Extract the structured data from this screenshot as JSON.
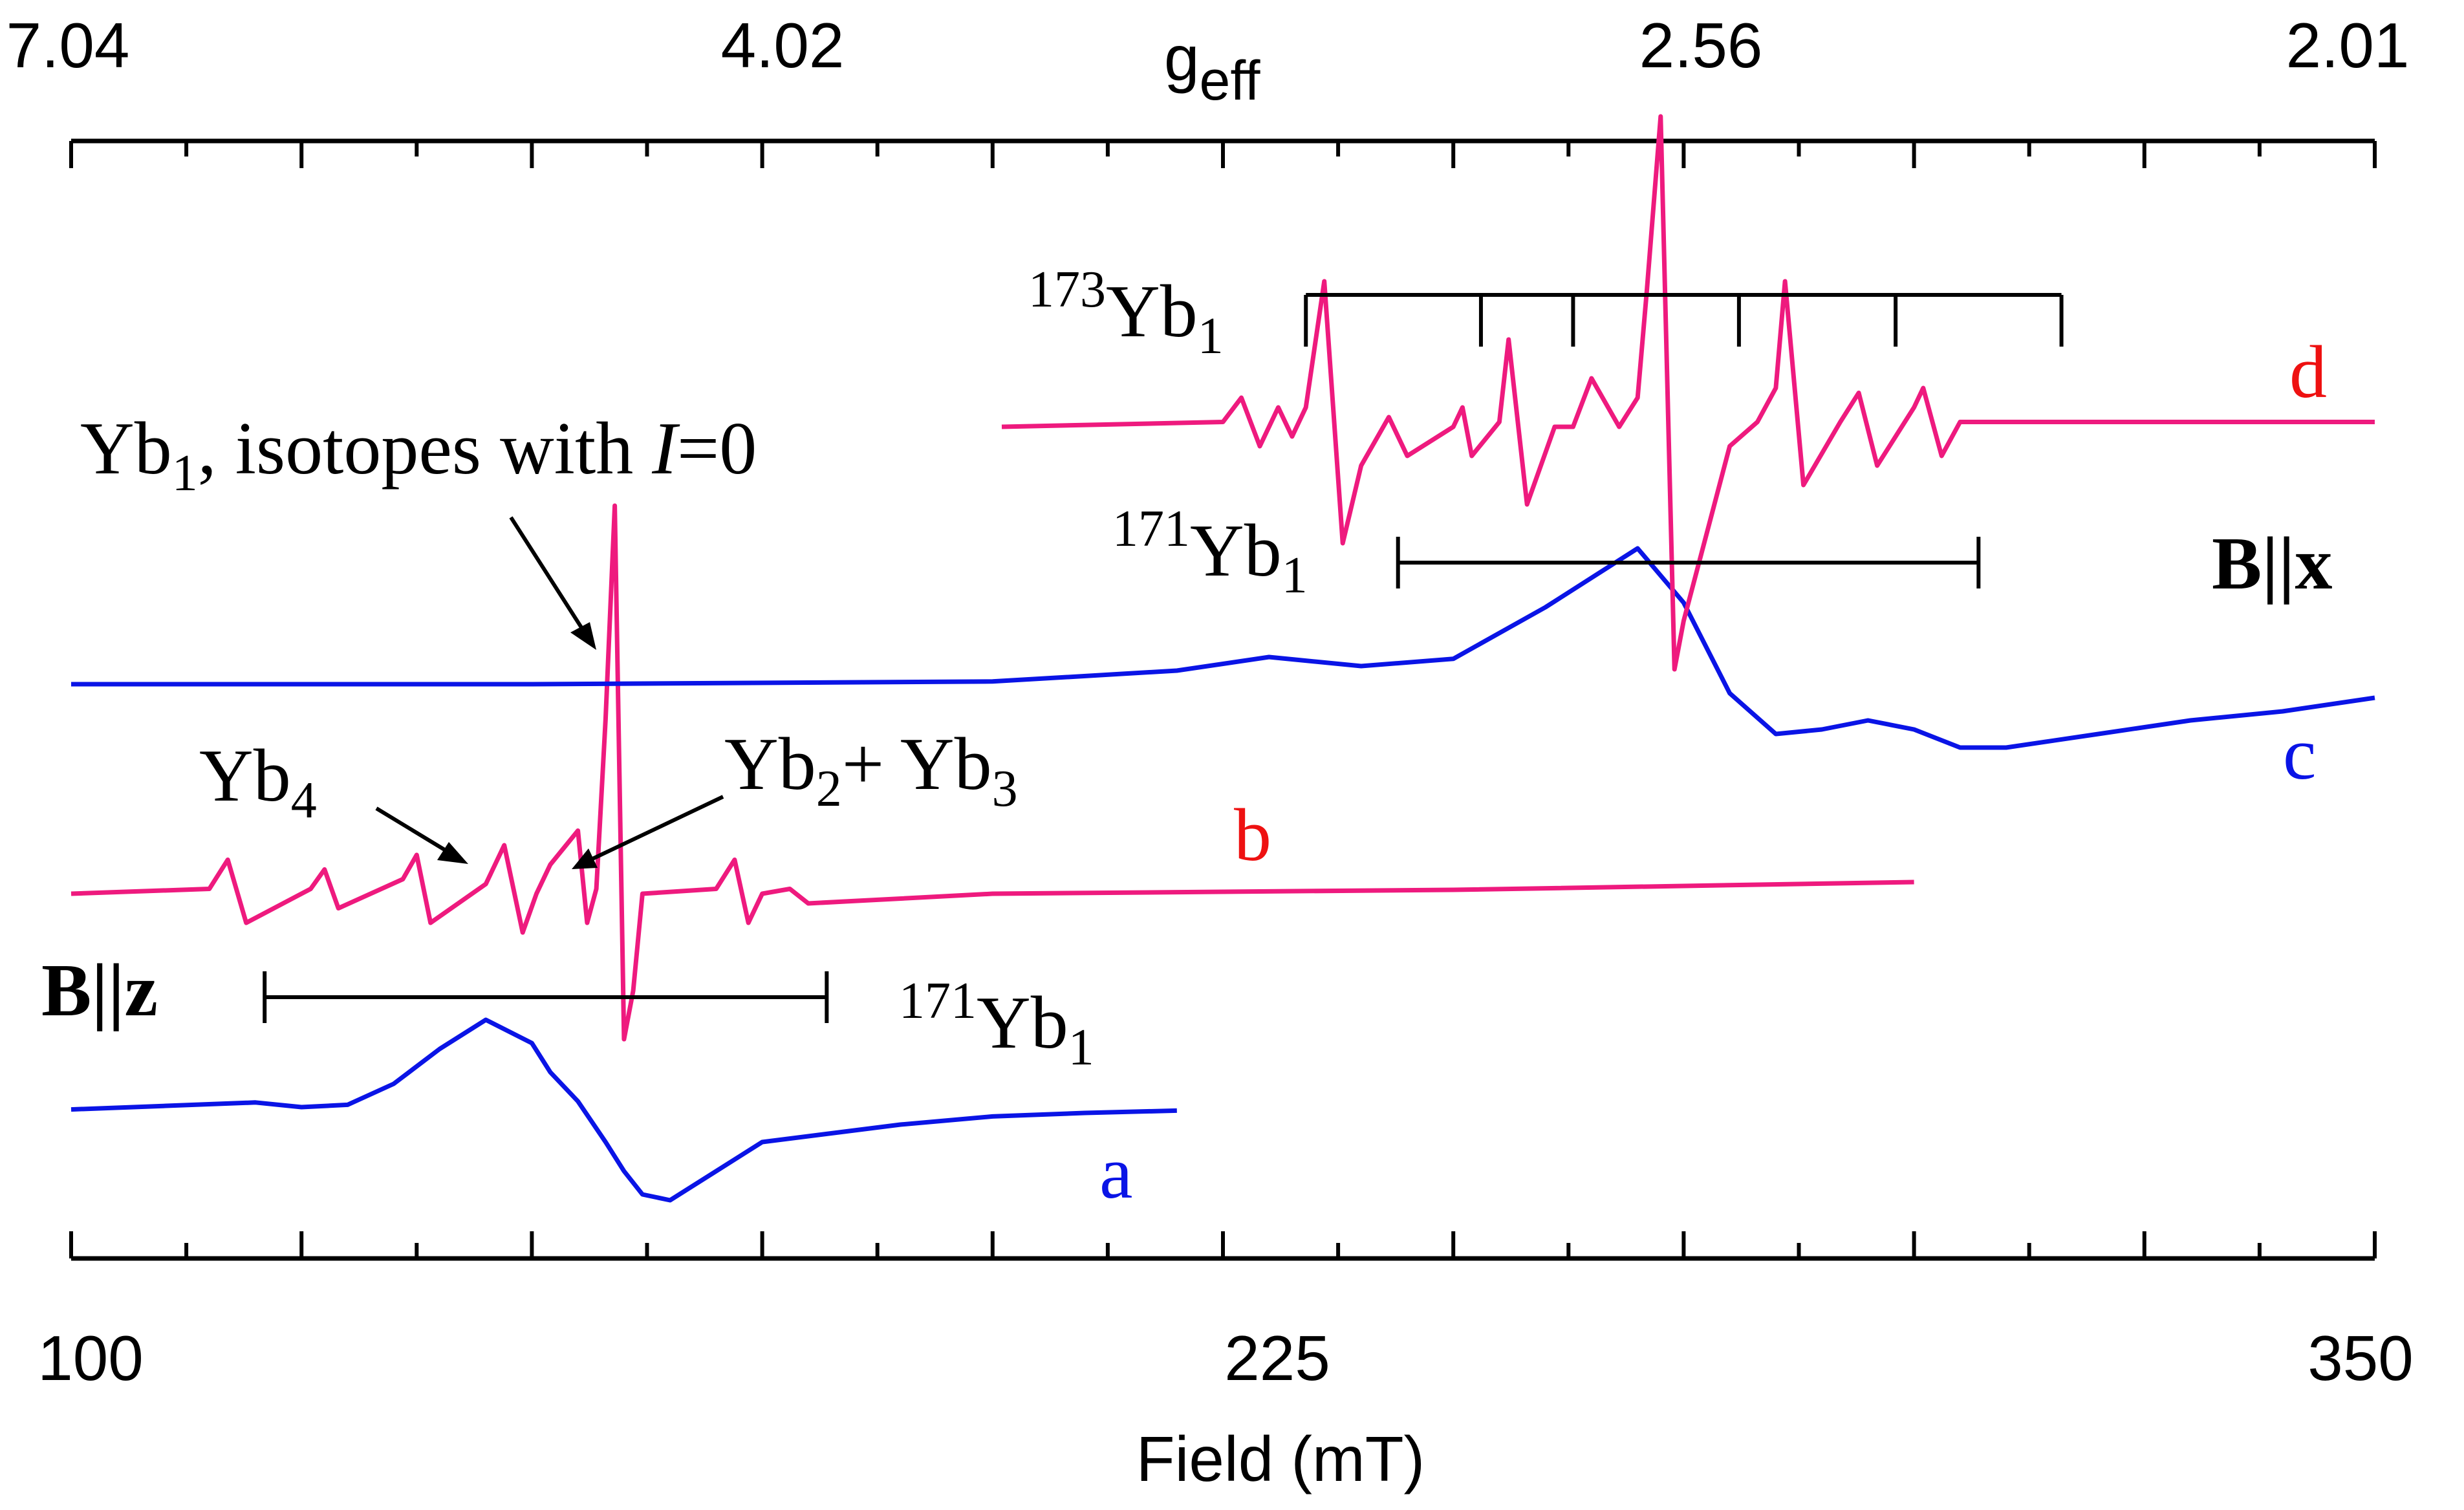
{
  "chart_data": {
    "type": "line",
    "title": "",
    "xlabel": "Field (mT)",
    "x2label": "g",
    "x2label_sub": "eff",
    "xlim": [
      100,
      350
    ],
    "xticks": [
      100,
      225,
      350
    ],
    "xtick_labels": [
      "100",
      "225",
      "350"
    ],
    "g_ticks": [
      7.04,
      4.02,
      2.56,
      2.01
    ],
    "g_tick_labels": [
      "7.04",
      "4.02",
      "2.56",
      "2.01"
    ],
    "y_units": "arbitrary (stacked, offset traces)",
    "colors": {
      "blue": "#0a14e6",
      "pink": "#ee1a7e",
      "red": "#ee1111",
      "black": "#000000"
    },
    "series": [
      {
        "name": "a",
        "label": "a",
        "color": "#0a14e6",
        "orientation": "B||z",
        "x": [
          100,
          110,
          120,
          125,
          130,
          135,
          140,
          145,
          150,
          152,
          155,
          158,
          160,
          162,
          165,
          170,
          175,
          180,
          190,
          200,
          210,
          220
        ],
        "y": [
          -0.02,
          0.01,
          0.04,
          0.0,
          0.02,
          0.2,
          0.5,
          0.75,
          0.55,
          0.3,
          0.05,
          -0.3,
          -0.55,
          -0.75,
          -0.8,
          -0.55,
          -0.3,
          -0.25,
          -0.15,
          -0.08,
          -0.05,
          -0.03
        ]
      },
      {
        "name": "b",
        "label": "b",
        "color": "#ee1a7e",
        "orientation": "B||z",
        "x": [
          100,
          115,
          117,
          119,
          126,
          127.5,
          129,
          136,
          137.5,
          139,
          145,
          147,
          149,
          150.5,
          152,
          155,
          156,
          157,
          158,
          159,
          160,
          161,
          162,
          170,
          172,
          173.5,
          175,
          178,
          180,
          200,
          250,
          300
        ],
        "y": [
          0,
          0.05,
          0.35,
          -0.3,
          0.05,
          0.25,
          -0.15,
          0.15,
          0.4,
          -0.3,
          0.1,
          0.5,
          -0.4,
          0.0,
          0.3,
          0.65,
          -0.3,
          0.05,
          1.8,
          4.0,
          -1.5,
          -1.0,
          0.0,
          0.05,
          0.35,
          -0.3,
          0.0,
          0.05,
          -0.1,
          0.0,
          0.04,
          0.12
        ]
      },
      {
        "name": "c",
        "label": "c",
        "color": "#0a14e6",
        "orientation": "B||x",
        "x": [
          100,
          150,
          200,
          220,
          230,
          240,
          250,
          260,
          270,
          275,
          280,
          285,
          290,
          295,
          300,
          305,
          310,
          320,
          330,
          340,
          350
        ],
        "y": [
          0,
          0.0,
          0.03,
          0.15,
          0.3,
          0.2,
          0.28,
          0.85,
          1.5,
          0.9,
          -0.1,
          -0.55,
          -0.5,
          -0.4,
          -0.5,
          -0.7,
          -0.7,
          -0.55,
          -0.4,
          -0.3,
          -0.15
        ]
      },
      {
        "name": "d",
        "label": "d",
        "color": "#ee1a7e",
        "orientation": "B||x",
        "x": [
          201,
          225,
          227,
          229,
          231,
          232.5,
          234,
          236,
          238,
          240,
          243,
          245,
          250,
          251,
          252,
          255,
          256,
          258,
          261,
          263,
          265,
          268,
          270,
          271,
          272.5,
          274,
          275,
          280,
          283,
          285,
          286,
          288,
          292,
          294,
          296,
          300,
          301,
          303,
          305,
          310,
          330,
          350
        ],
        "y": [
          0,
          0.05,
          0.3,
          -0.2,
          0.2,
          -0.1,
          0.2,
          1.5,
          -1.2,
          -0.4,
          0.1,
          -0.3,
          0.0,
          0.2,
          -0.3,
          0.05,
          0.9,
          -0.8,
          0.0,
          0.0,
          0.5,
          0.0,
          0.3,
          1.4,
          3.2,
          -2.5,
          -2.0,
          -0.2,
          0.05,
          0.4,
          1.5,
          -0.6,
          0.05,
          0.35,
          -0.4,
          0.2,
          0.4,
          -0.3,
          0.05,
          0.05,
          0.05,
          0.05
        ]
      }
    ],
    "annotations": {
      "main_line": "Yb",
      "main_line_sub": "1",
      "main_line_rest": ", isotopes with ",
      "main_line_italic": "I",
      "main_line_end": "=0",
      "yb4": "Yb",
      "yb4_sub": "4",
      "yb23_a": "Yb",
      "yb23_sub_a": "2",
      "yb23_mid": "+ Yb",
      "yb23_sub_b": "3",
      "bz": "B||z",
      "bx": "B||x",
      "yb171_sup": "171",
      "yb171_main": "Yb",
      "yb171_sub": "1",
      "yb173_sup": "173",
      "yb173_main": "Yb",
      "yb173_sub": "1"
    },
    "hyperfine_combs": [
      {
        "isotope": "171Yb1",
        "trace": "b",
        "fields": [
          121,
          182
        ]
      },
      {
        "isotope": "171Yb1",
        "trace": "d",
        "fields": [
          244,
          307
        ]
      },
      {
        "isotope": "173Yb1",
        "trace": "d",
        "fields": [
          234,
          253,
          263,
          281,
          298,
          316
        ]
      }
    ]
  }
}
